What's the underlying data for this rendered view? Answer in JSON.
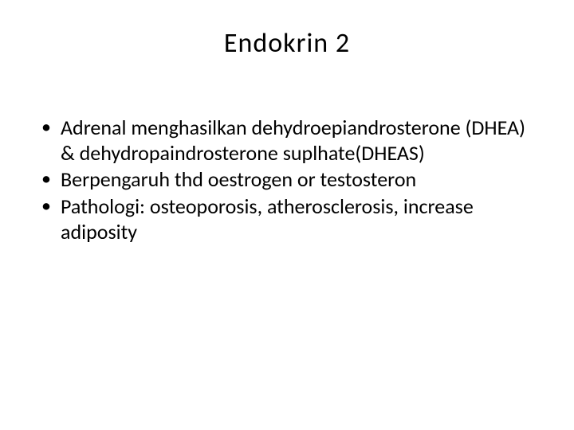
{
  "slide": {
    "title": "Endokrin 2",
    "title_fontsize": 34,
    "title_letter_spacing": 1,
    "body_fontsize": 26,
    "font_family": "Calibri",
    "background_color": "#ffffff",
    "text_color": "#000000",
    "bullets": [
      "Adrenal menghasilkan dehydroepiandrosterone (DHEA) & dehydropaindrosterone suplhate(DHEAS)",
      "Berpengaruh thd oestrogen or testosteron",
      "Pathologi: osteoporosis, atherosclerosis, increase adiposity"
    ]
  }
}
